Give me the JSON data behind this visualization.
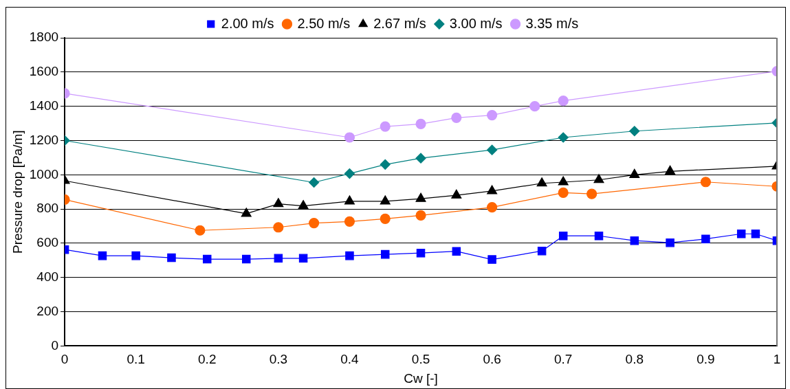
{
  "chart_data": {
    "type": "line",
    "xlabel": "Cw [-]",
    "ylabel": "Pressure drop [Pa/m]",
    "xlim": [
      0,
      1
    ],
    "xticks": [
      0,
      0.1,
      0.2,
      0.3,
      0.4,
      0.5,
      0.6,
      0.7,
      0.8,
      0.9,
      1
    ],
    "ylim": [
      0,
      1800
    ],
    "yticks": [
      0,
      200,
      400,
      600,
      800,
      1000,
      1200,
      1400,
      1600,
      1800
    ],
    "grid": "y",
    "legend": "top",
    "line_style": "solid",
    "series": [
      {
        "name": "2.00 m/s",
        "color": "#0000ff",
        "marker": "square",
        "x": [
          0,
          0.053,
          0.1,
          0.15,
          0.2,
          0.255,
          0.3,
          0.335,
          0.4,
          0.45,
          0.5,
          0.55,
          0.6,
          0.67,
          0.7,
          0.75,
          0.8,
          0.85,
          0.9,
          0.95,
          0.97,
          1.0
        ],
        "values": [
          563,
          527,
          527,
          515,
          507,
          507,
          512,
          512,
          527,
          535,
          543,
          553,
          505,
          555,
          643,
          643,
          615,
          603,
          625,
          655,
          655,
          615
        ]
      },
      {
        "name": "2.50 m/s",
        "color": "#ff6600",
        "marker": "circle",
        "x": [
          0,
          0.19,
          0.3,
          0.35,
          0.4,
          0.45,
          0.5,
          0.6,
          0.7,
          0.74,
          0.9,
          1.0
        ],
        "values": [
          855,
          675,
          693,
          718,
          727,
          743,
          763,
          810,
          895,
          888,
          958,
          932
        ]
      },
      {
        "name": "2.67 m/s",
        "color": "#000000",
        "marker": "triangle",
        "x": [
          0,
          0.255,
          0.3,
          0.335,
          0.4,
          0.45,
          0.5,
          0.55,
          0.6,
          0.67,
          0.7,
          0.75,
          0.8,
          0.85,
          1.0
        ],
        "values": [
          965,
          773,
          830,
          818,
          845,
          845,
          860,
          880,
          905,
          950,
          957,
          970,
          1000,
          1020,
          1050
        ]
      },
      {
        "name": "3.00 m/s",
        "color": "#008080",
        "marker": "diamond",
        "x": [
          0,
          0.35,
          0.4,
          0.45,
          0.5,
          0.6,
          0.7,
          0.8,
          1.0
        ],
        "values": [
          1200,
          955,
          1007,
          1060,
          1097,
          1145,
          1218,
          1255,
          1303
        ]
      },
      {
        "name": "3.35 m/s",
        "color": "#cc99ff",
        "marker": "circle",
        "x": [
          0,
          0.4,
          0.45,
          0.5,
          0.55,
          0.6,
          0.66,
          0.7,
          1.0
        ],
        "values": [
          1475,
          1218,
          1282,
          1297,
          1333,
          1348,
          1400,
          1432,
          1605
        ]
      }
    ]
  }
}
